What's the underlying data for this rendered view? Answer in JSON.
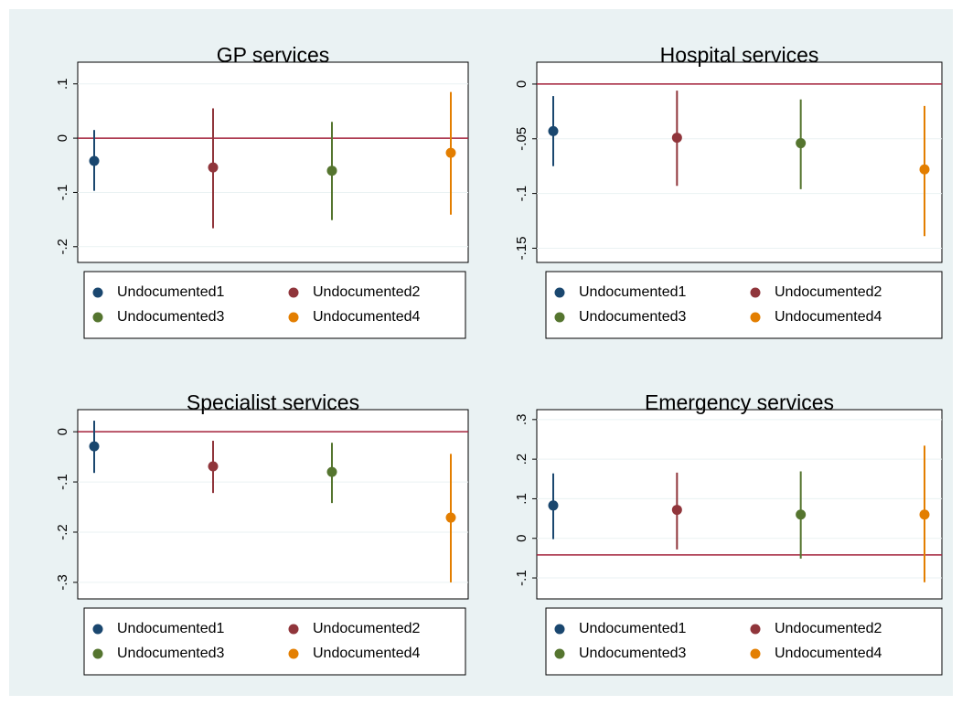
{
  "chart_data": [
    {
      "type": "errorbar",
      "title": "GP services",
      "refline": 0,
      "refline_color": "#a3203a",
      "ylim": [
        -0.229,
        0.14
      ],
      "yticks": [
        {
          "value": 0.1,
          "label": ".1"
        },
        0,
        {
          "value": -0.1,
          "label": "-.1"
        },
        {
          "value": -0.2,
          "label": "-.2"
        }
      ],
      "grid": true,
      "series": [
        {
          "name": "Undocumented1",
          "color": "#1a476f",
          "values": [
            -0.042
          ],
          "lower": [
            -0.097
          ],
          "upper": [
            0.015
          ]
        },
        {
          "name": "Undocumented2",
          "color": "#90353b",
          "values": [
            -0.054
          ],
          "lower": [
            -0.166
          ],
          "upper": [
            0.055
          ]
        },
        {
          "name": "Undocumented3",
          "color": "#55752f",
          "values": [
            -0.06
          ],
          "lower": [
            -0.151
          ],
          "upper": [
            0.03
          ]
        },
        {
          "name": "Undocumented4",
          "color": "#e37e00",
          "values": [
            -0.027
          ],
          "lower": [
            -0.141
          ],
          "upper": [
            0.085
          ]
        }
      ]
    },
    {
      "type": "errorbar",
      "title": "Hospital services",
      "refline": 0,
      "refline_color": "#a3203a",
      "ylim": [
        -0.163,
        0.02
      ],
      "yticks": [
        0,
        {
          "value": -0.05,
          "label": "-.05"
        },
        {
          "value": -0.1,
          "label": "-.1"
        },
        {
          "value": -0.15,
          "label": "-.15"
        }
      ],
      "grid": true,
      "series": [
        {
          "name": "Undocumented1",
          "color": "#1a476f",
          "values": [
            -0.043
          ],
          "lower": [
            -0.075
          ],
          "upper": [
            -0.011
          ]
        },
        {
          "name": "Undocumented2",
          "color": "#90353b",
          "values": [
            -0.049
          ],
          "lower": [
            -0.093
          ],
          "upper": [
            -0.006
          ]
        },
        {
          "name": "Undocumented3",
          "color": "#55752f",
          "values": [
            -0.054
          ],
          "lower": [
            -0.096
          ],
          "upper": [
            -0.014
          ]
        },
        {
          "name": "Undocumented4",
          "color": "#e37e00",
          "values": [
            -0.078
          ],
          "lower": [
            -0.139
          ],
          "upper": [
            -0.02
          ]
        }
      ]
    },
    {
      "type": "errorbar",
      "title": "Specialist services",
      "refline": 0,
      "refline_color": "#a3203a",
      "ylim": [
        -0.333,
        0.044
      ],
      "yticks": [
        0,
        {
          "value": -0.1,
          "label": "-.1"
        },
        {
          "value": -0.2,
          "label": "-.2"
        },
        {
          "value": -0.3,
          "label": "-.3"
        }
      ],
      "grid": true,
      "series": [
        {
          "name": "Undocumented1",
          "color": "#1a476f",
          "values": [
            -0.029
          ],
          "lower": [
            -0.082
          ],
          "upper": [
            0.022
          ]
        },
        {
          "name": "Undocumented2",
          "color": "#90353b",
          "values": [
            -0.069
          ],
          "lower": [
            -0.122
          ],
          "upper": [
            -0.018
          ]
        },
        {
          "name": "Undocumented3",
          "color": "#55752f",
          "values": [
            -0.08
          ],
          "lower": [
            -0.142
          ],
          "upper": [
            -0.022
          ]
        },
        {
          "name": "Undocumented4",
          "color": "#e37e00",
          "values": [
            -0.171
          ],
          "lower": [
            -0.3
          ],
          "upper": [
            -0.044
          ]
        }
      ]
    },
    {
      "type": "errorbar",
      "title": "Emergency services",
      "refline": -0.042,
      "refline_color": "#a3203a",
      "ylim": [
        -0.153,
        0.325
      ],
      "yticks": [
        {
          "value": 0.3,
          "label": ".3"
        },
        {
          "value": 0.2,
          "label": ".2"
        },
        {
          "value": 0.1,
          "label": ".1"
        },
        0,
        {
          "value": -0.1,
          "label": "-.1"
        }
      ],
      "grid": true,
      "series": [
        {
          "name": "Undocumented1",
          "color": "#1a476f",
          "values": [
            0.083
          ],
          "lower": [
            -0.002
          ],
          "upper": [
            0.164
          ]
        },
        {
          "name": "Undocumented2",
          "color": "#90353b",
          "values": [
            0.072
          ],
          "lower": [
            -0.028
          ],
          "upper": [
            0.166
          ]
        },
        {
          "name": "Undocumented3",
          "color": "#55752f",
          "values": [
            0.06
          ],
          "lower": [
            -0.051
          ],
          "upper": [
            0.169
          ]
        },
        {
          "name": "Undocumented4",
          "color": "#e37e00",
          "values": [
            0.06
          ],
          "lower": [
            -0.111
          ],
          "upper": [
            0.234
          ]
        }
      ]
    }
  ]
}
